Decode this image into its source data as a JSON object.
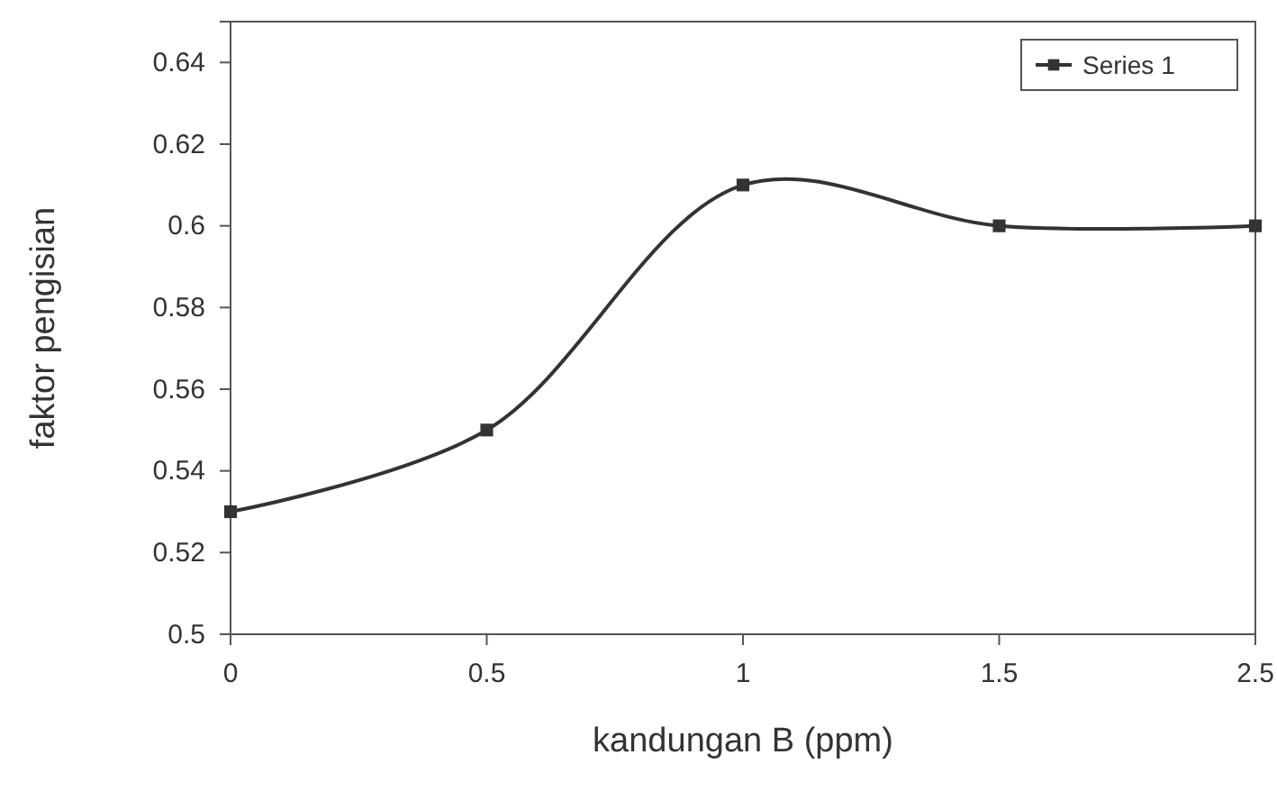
{
  "chart_data": {
    "type": "line",
    "xlabel": "kandungan B (ppm)",
    "ylabel": "faktor pengisian",
    "categories": [
      "0",
      "0.5",
      "1",
      "1.5",
      "2.5"
    ],
    "series": [
      {
        "name": "Series 1",
        "color": "#333333",
        "values": [
          0.53,
          0.55,
          0.61,
          0.6,
          0.6
        ]
      }
    ],
    "ylim": [
      0.5,
      0.65
    ],
    "yticks": [
      0.5,
      0.52,
      0.54,
      0.56,
      0.58,
      0.6,
      0.62,
      0.64
    ],
    "grid": false,
    "legend": "top right",
    "marker": "square",
    "line_style": "solid"
  }
}
